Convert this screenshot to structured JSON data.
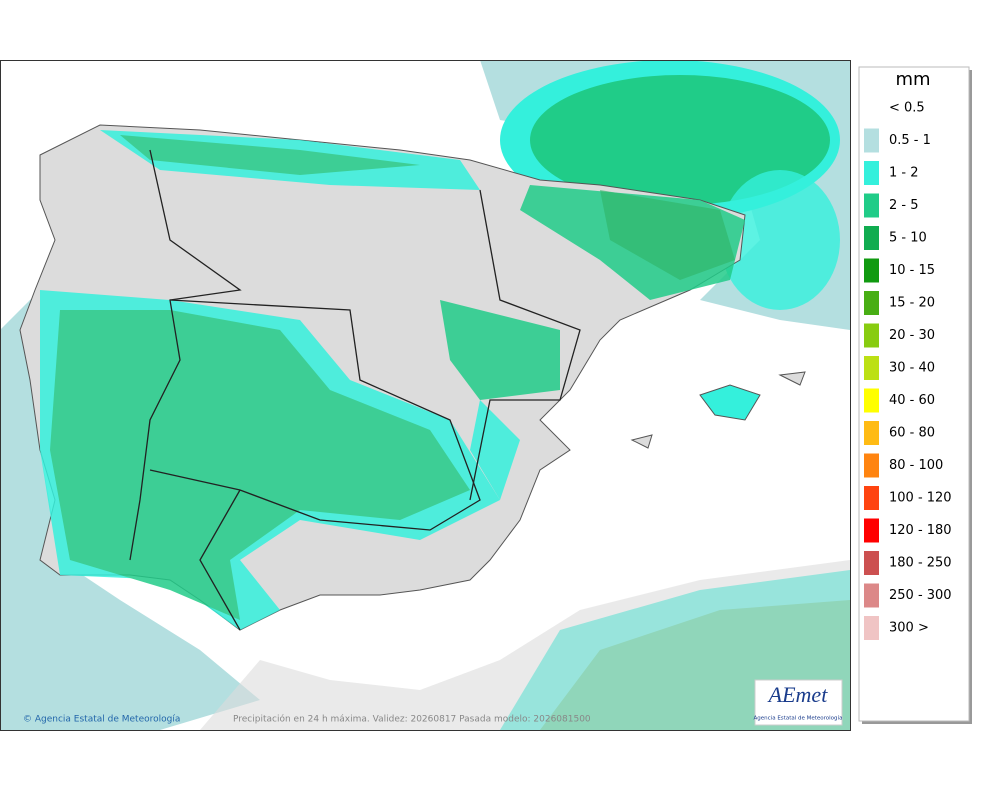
{
  "legend": {
    "unit": "mm",
    "items": [
      {
        "label": "< 0.5",
        "color": "#ffffff"
      },
      {
        "label": "0.5 - 1",
        "color": "#b4dfe0"
      },
      {
        "label": "1 - 2",
        "color": "#34f0dc"
      },
      {
        "label": "2 - 5",
        "color": "#20cc88"
      },
      {
        "label": "5 - 10",
        "color": "#10ac50"
      },
      {
        "label": "10 - 15",
        "color": "#109a10"
      },
      {
        "label": "15 - 20",
        "color": "#48ae14"
      },
      {
        "label": "20 - 30",
        "color": "#88cc10"
      },
      {
        "label": "30 - 40",
        "color": "#bce014"
      },
      {
        "label": "40 - 60",
        "color": "#ffff00"
      },
      {
        "label": "60 - 80",
        "color": "#ffbb14"
      },
      {
        "label": "80 - 100",
        "color": "#ff8410"
      },
      {
        "label": "100 - 120",
        "color": "#ff4410"
      },
      {
        "label": "120 - 180",
        "color": "#ff0000"
      },
      {
        "label": "180 - 250",
        "color": "#cc5050"
      },
      {
        "label": "250 - 300",
        "color": "#dc8888"
      },
      {
        "label": "300 >",
        "color": "#f0c4c4"
      }
    ]
  },
  "footer": {
    "copyright": "© Agencia Estatal de Meteorología",
    "caption": "Precipitación en 24 h máxima. Validez: 20260817 Pasada modelo: 2026081500"
  },
  "logo": {
    "name": "AEmet",
    "subtitle": "Agencia Estatal de Meteorología"
  }
}
